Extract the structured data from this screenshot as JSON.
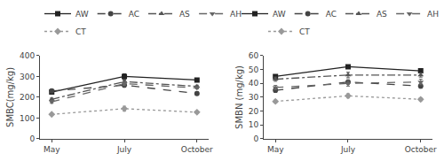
{
  "chart_data": [
    {
      "type": "line",
      "ylabel": "SMBC(mg/kg)",
      "categories": [
        "May",
        "July",
        "October"
      ],
      "ylim": [
        0,
        400
      ],
      "yticks": [
        0,
        100,
        200,
        300,
        400
      ],
      "grid": false,
      "legend": "top",
      "series": [
        {
          "name": "AW",
          "values": [
            225,
            300,
            283
          ],
          "errors": [
            5,
            12,
            8
          ],
          "color": "#222222",
          "line_style": "solid",
          "marker": "square"
        },
        {
          "name": "AC",
          "values": [
            230,
            258,
            218
          ],
          "errors": [
            8,
            10,
            7
          ],
          "color": "#444444",
          "line_style": "dashed",
          "marker": "circle"
        },
        {
          "name": "AS",
          "values": [
            190,
            275,
            252
          ],
          "errors": [
            6,
            8,
            6
          ],
          "color": "#555555",
          "line_style": "dashdot",
          "marker": "triangle-up"
        },
        {
          "name": "AH",
          "values": [
            178,
            265,
            245
          ],
          "errors": [
            7,
            9,
            5
          ],
          "color": "#666666",
          "line_style": "dashed",
          "marker": "triangle-down"
        },
        {
          "name": "CT",
          "values": [
            118,
            145,
            128
          ],
          "errors": [
            4,
            12,
            5
          ],
          "color": "#999999",
          "line_style": "dotted",
          "marker": "diamond"
        }
      ]
    },
    {
      "type": "line",
      "ylabel": "SMBN (mg/kg)",
      "categories": [
        "May",
        "July",
        "October"
      ],
      "ylim": [
        0,
        60
      ],
      "yticks": [
        0,
        10,
        20,
        30,
        40,
        50,
        60
      ],
      "grid": false,
      "legend": "top",
      "series": [
        {
          "name": "AW",
          "values": [
            45,
            52,
            49
          ],
          "errors": [
            1.2,
            1.2,
            1.2
          ],
          "color": "#222222",
          "line_style": "solid",
          "marker": "square"
        },
        {
          "name": "AC",
          "values": [
            35,
            41,
            38
          ],
          "errors": [
            1.5,
            1.5,
            1.5
          ],
          "color": "#444444",
          "line_style": "dashed",
          "marker": "circle"
        },
        {
          "name": "AS",
          "values": [
            43,
            46,
            46
          ],
          "errors": [
            1.5,
            2,
            1.5
          ],
          "color": "#555555",
          "line_style": "dashdot",
          "marker": "triangle-up"
        },
        {
          "name": "AH",
          "values": [
            37,
            40,
            41
          ],
          "errors": [
            1.5,
            2,
            2
          ],
          "color": "#666666",
          "line_style": "dashed",
          "marker": "triangle-down"
        },
        {
          "name": "CT",
          "values": [
            27,
            31,
            28.5
          ],
          "errors": [
            1,
            1.5,
            1
          ],
          "color": "#999999",
          "line_style": "dotted",
          "marker": "diamond"
        }
      ]
    }
  ]
}
